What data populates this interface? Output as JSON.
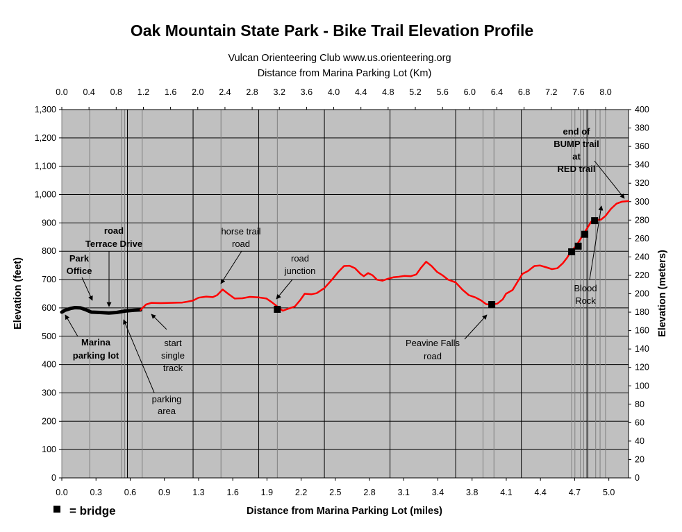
{
  "chart_data": {
    "type": "line",
    "title": "Oak Mountain State Park - Bike Trail Elevation Profile",
    "subtitle": "Vulcan Orienteering Club   www.us.orienteering.org",
    "top_axis_label": "Distance from Marina Parking Lot (Km)",
    "xlabel": "Distance from Marina Parking Lot (miles)",
    "ylabel": "Elevation (feet)",
    "y2label": "Elevation (meters)",
    "xlim": [
      0,
      5.18
    ],
    "ylim": [
      0,
      1300
    ],
    "y2lim": [
      0,
      400
    ],
    "x_ticks": [
      "0.0",
      "0.3",
      "0.6",
      "0.9",
      "1.3",
      "1.6",
      "1.9",
      "2.2",
      "2.5",
      "2.8",
      "3.1",
      "3.4",
      "3.8",
      "4.1",
      "4.4",
      "4.7",
      "5.0"
    ],
    "x_top_ticks": [
      "0.0",
      "0.4",
      "0.8",
      "1.2",
      "1.6",
      "2.0",
      "2.4",
      "2.8",
      "3.2",
      "3.6",
      "4.0",
      "4.4",
      "4.8",
      "5.2",
      "5.6",
      "6.0",
      "6.4",
      "6.8",
      "7.2",
      "7.6",
      "8.0"
    ],
    "y_ticks": [
      "0",
      "100",
      "200",
      "300",
      "400",
      "500",
      "600",
      "700",
      "800",
      "900",
      "1,000",
      "1,100",
      "1,200",
      "1,300"
    ],
    "y2_ticks": [
      "0",
      "20",
      "40",
      "60",
      "80",
      "100",
      "120",
      "140",
      "160",
      "180",
      "200",
      "220",
      "240",
      "260",
      "280",
      "300",
      "320",
      "340",
      "360",
      "380",
      "400"
    ],
    "grid": true,
    "background": "#c0c0c0",
    "series": [
      {
        "color": "#000000",
        "points": [
          [
            0.0,
            585
          ],
          [
            0.03,
            592
          ],
          [
            0.08,
            598
          ],
          [
            0.12,
            601
          ],
          [
            0.17,
            600
          ],
          [
            0.21,
            595
          ],
          [
            0.27,
            585
          ],
          [
            0.35,
            584
          ],
          [
            0.43,
            582
          ],
          [
            0.5,
            584
          ],
          [
            0.58,
            589
          ],
          [
            0.66,
            592
          ],
          [
            0.72,
            593
          ]
        ]
      },
      {
        "color": "#ff0000",
        "points": [
          [
            0.72,
            593
          ],
          [
            0.77,
            612
          ],
          [
            0.82,
            618
          ],
          [
            0.9,
            617
          ],
          [
            1.0,
            618
          ],
          [
            1.1,
            619
          ],
          [
            1.15,
            622
          ],
          [
            1.2,
            626
          ],
          [
            1.25,
            636
          ],
          [
            1.32,
            640
          ],
          [
            1.38,
            638
          ],
          [
            1.42,
            645
          ],
          [
            1.47,
            665
          ],
          [
            1.52,
            650
          ],
          [
            1.58,
            633
          ],
          [
            1.65,
            634
          ],
          [
            1.72,
            639
          ],
          [
            1.8,
            637
          ],
          [
            1.87,
            633
          ],
          [
            1.92,
            620
          ],
          [
            1.97,
            605
          ],
          [
            2.02,
            590
          ],
          [
            2.07,
            597
          ],
          [
            2.13,
            605
          ],
          [
            2.18,
            628
          ],
          [
            2.22,
            650
          ],
          [
            2.28,
            648
          ],
          [
            2.33,
            652
          ],
          [
            2.4,
            670
          ],
          [
            2.47,
            700
          ],
          [
            2.53,
            728
          ],
          [
            2.58,
            748
          ],
          [
            2.63,
            749
          ],
          [
            2.68,
            740
          ],
          [
            2.73,
            720
          ],
          [
            2.76,
            712
          ],
          [
            2.8,
            723
          ],
          [
            2.84,
            715
          ],
          [
            2.88,
            700
          ],
          [
            2.93,
            696
          ],
          [
            2.98,
            703
          ],
          [
            3.03,
            708
          ],
          [
            3.08,
            710
          ],
          [
            3.13,
            713
          ],
          [
            3.19,
            712
          ],
          [
            3.24,
            718
          ],
          [
            3.28,
            740
          ],
          [
            3.33,
            763
          ],
          [
            3.38,
            748
          ],
          [
            3.43,
            727
          ],
          [
            3.48,
            715
          ],
          [
            3.53,
            700
          ],
          [
            3.6,
            690
          ],
          [
            3.66,
            665
          ],
          [
            3.72,
            645
          ],
          [
            3.78,
            637
          ],
          [
            3.83,
            627
          ],
          [
            3.88,
            613
          ],
          [
            3.93,
            612
          ],
          [
            3.98,
            615
          ],
          [
            4.03,
            630
          ],
          [
            4.06,
            650
          ],
          [
            4.12,
            663
          ],
          [
            4.17,
            695
          ],
          [
            4.21,
            720
          ],
          [
            4.26,
            730
          ],
          [
            4.32,
            748
          ],
          [
            4.37,
            750
          ],
          [
            4.43,
            743
          ],
          [
            4.48,
            737
          ],
          [
            4.53,
            740
          ],
          [
            4.58,
            758
          ],
          [
            4.62,
            778
          ],
          [
            4.65,
            798
          ],
          [
            4.7,
            818
          ],
          [
            4.76,
            855
          ],
          [
            4.8,
            880
          ],
          [
            4.84,
            905
          ],
          [
            4.88,
            910
          ],
          [
            4.93,
            912
          ],
          [
            4.97,
            925
          ],
          [
            5.02,
            950
          ],
          [
            5.07,
            968
          ],
          [
            5.12,
            975
          ],
          [
            5.18,
            977
          ]
        ]
      }
    ],
    "bridges": [
      [
        1.97,
        595
      ],
      [
        3.93,
        612
      ],
      [
        4.66,
        798
      ],
      [
        4.72,
        818
      ],
      [
        4.78,
        860
      ],
      [
        4.87,
        908
      ]
    ],
    "vertical_lines": [
      0.255,
      0.545,
      0.575,
      0.735,
      1.455,
      1.97,
      3.85,
      3.95,
      4.66,
      4.69,
      4.74,
      4.77,
      4.81,
      4.88,
      4.92,
      4.97
    ],
    "annotations": {
      "park_office": [
        "Park",
        "Office"
      ],
      "terrace_drive": [
        "road",
        "Terrace Drive"
      ],
      "marina": [
        "Marina",
        "parking lot"
      ],
      "start": [
        "start",
        "single",
        "track"
      ],
      "parking": [
        "parking",
        "area"
      ],
      "horse_trail": [
        "horse trail",
        "road"
      ],
      "road_junction": [
        "road",
        "junction"
      ],
      "peavine": [
        "Peavine Falls",
        "road"
      ],
      "bump": [
        "end of",
        "BUMP trail",
        "at",
        "RED trail"
      ],
      "blood_rock": [
        "Blood",
        "Rock"
      ]
    },
    "legend_text": "= bridge"
  }
}
